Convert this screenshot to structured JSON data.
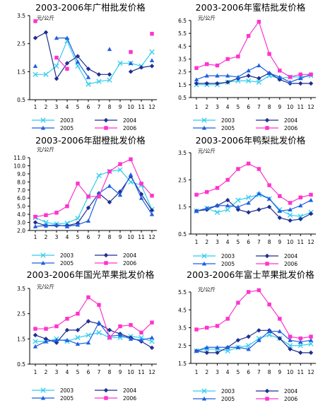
{
  "chart_data": [
    {
      "type": "line",
      "title": "2003-2006年广柑批发价格",
      "ylabel": "元/公斤",
      "ylim": [
        0.5,
        3.5
      ],
      "yticks": [
        "0.5",
        "1.5",
        "2.5",
        "3.5"
      ],
      "categories": [
        "1",
        "2",
        "3",
        "4",
        "5",
        "6",
        "7",
        "8",
        "9",
        "10",
        "11",
        "12"
      ],
      "series": [
        {
          "name": "2003",
          "color": "#33ccee",
          "marker": "x",
          "values": [
            1.4,
            1.4,
            1.7,
            2.6,
            1.7,
            1.05,
            1.15,
            1.2,
            1.8,
            1.8,
            1.7,
            2.2
          ]
        },
        {
          "name": "2004",
          "color": "#1f2f8f",
          "marker": "diamond",
          "values": [
            2.7,
            2.9,
            1.25,
            1.8,
            2.05,
            1.6,
            1.4,
            1.4,
            null,
            1.5,
            1.65,
            1.7
          ]
        },
        {
          "name": "2005",
          "color": "#1f5fe0",
          "marker": "triangle",
          "values": [
            1.7,
            null,
            2.7,
            2.7,
            1.85,
            1.3,
            null,
            2.3,
            null,
            1.8,
            null,
            1.9
          ]
        },
        {
          "name": "2006",
          "color": "#ff33cc",
          "marker": "square",
          "values": [
            3.3,
            null,
            2.0,
            1.6,
            null,
            null,
            null,
            null,
            null,
            2.2,
            null,
            2.85
          ]
        }
      ]
    },
    {
      "type": "line",
      "title": "2003-2006年蜜桔批发价格",
      "ylabel": "元/公斤",
      "ylim": [
        0.5,
        6.5
      ],
      "yticks": [
        "0.5",
        "1.5",
        "2.5",
        "3.5",
        "4.5",
        "5.5",
        "6.5"
      ],
      "categories": [
        "1",
        "2",
        "3",
        "4",
        "5",
        "6",
        "7",
        "8",
        "9",
        "10",
        "11",
        "12"
      ],
      "series": [
        {
          "name": "2003",
          "color": "#33ccee",
          "marker": "x",
          "values": [
            1.5,
            1.5,
            1.5,
            1.7,
            1.8,
            1.8,
            1.7,
            2.2,
            2.0,
            2.1,
            2.1,
            2.2
          ]
        },
        {
          "name": "2004",
          "color": "#1f2f8f",
          "marker": "diamond",
          "values": [
            1.6,
            1.6,
            1.6,
            1.7,
            2.0,
            2.2,
            2.0,
            2.4,
            1.9,
            1.6,
            1.6,
            1.6
          ]
        },
        {
          "name": "2005",
          "color": "#1f5fe0",
          "marker": "triangle",
          "values": [
            1.9,
            2.2,
            2.2,
            2.2,
            2.1,
            2.6,
            3.0,
            2.4,
            2.1,
            1.7,
            2.0,
            2.3
          ]
        },
        {
          "name": "2006",
          "color": "#ff33cc",
          "marker": "square",
          "values": [
            2.8,
            3.1,
            3.0,
            3.5,
            3.7,
            5.3,
            6.4,
            3.9,
            2.6,
            2.1,
            2.3,
            2.3
          ]
        }
      ]
    },
    {
      "type": "line",
      "title": "2003-2006年甜橙批发价格",
      "ylabel": "元/公斤",
      "ylim": [
        2.0,
        11.0
      ],
      "yticks": [
        "2.0",
        "3.0",
        "4.0",
        "5.0",
        "6.0",
        "7.0",
        "8.0",
        "9.0",
        "10.0",
        "11.0"
      ],
      "categories": [
        "1",
        "2",
        "3",
        "4",
        "5",
        "6",
        "7",
        "8",
        "9",
        "10",
        "11",
        "12"
      ],
      "series": [
        {
          "name": "2003",
          "color": "#33ccee",
          "marker": "x",
          "values": [
            3.6,
            3.0,
            2.8,
            2.9,
            3.5,
            6.2,
            8.8,
            9.3,
            9.5,
            8.0,
            7.6,
            4.6
          ]
        },
        {
          "name": "2004",
          "color": "#1f2f8f",
          "marker": "diamond",
          "values": [
            3.0,
            2.6,
            2.6,
            2.6,
            2.9,
            4.8,
            6.6,
            5.5,
            6.8,
            8.7,
            6.5,
            4.5
          ]
        },
        {
          "name": "2005",
          "color": "#1f5fe0",
          "marker": "triangle",
          "values": [
            2.5,
            2.6,
            2.7,
            2.5,
            2.7,
            3.2,
            6.6,
            7.5,
            6.4,
            8.9,
            6.0,
            4.0
          ]
        },
        {
          "name": "2006",
          "color": "#ff33cc",
          "marker": "square",
          "values": [
            3.7,
            3.9,
            4.2,
            5.0,
            7.8,
            6.2,
            6.2,
            9.3,
            10.2,
            10.8,
            7.8,
            6.3
          ]
        }
      ]
    },
    {
      "type": "line",
      "title": "2003-2006年鸭梨批发价格",
      "ylabel": "元/公斤",
      "ylim": [
        0.5,
        3.5
      ],
      "yticks": [
        "0.5",
        "1.5",
        "2.5",
        "3.5"
      ],
      "categories": [
        "1",
        "2",
        "3",
        "4",
        "5",
        "6",
        "7",
        "8",
        "9",
        "10",
        "11",
        "12"
      ],
      "series": [
        {
          "name": "2003",
          "color": "#33ccee",
          "marker": "x",
          "values": [
            1.35,
            1.45,
            1.3,
            1.4,
            1.75,
            1.85,
            1.95,
            1.8,
            1.4,
            1.2,
            1.15,
            1.3
          ]
        },
        {
          "name": "2004",
          "color": "#1f2f8f",
          "marker": "diamond",
          "values": [
            1.35,
            1.4,
            1.55,
            1.75,
            1.4,
            1.3,
            1.4,
            1.5,
            1.1,
            1.0,
            1.05,
            1.25
          ]
        },
        {
          "name": "2005",
          "color": "#1f5fe0",
          "marker": "triangle",
          "values": [
            1.35,
            1.45,
            1.55,
            1.55,
            1.5,
            1.65,
            2.0,
            1.8,
            1.35,
            1.4,
            1.55,
            1.75
          ]
        },
        {
          "name": "2006",
          "color": "#ff33cc",
          "marker": "square",
          "values": [
            1.95,
            2.05,
            2.2,
            2.5,
            2.9,
            3.1,
            2.9,
            2.3,
            1.9,
            1.65,
            1.85,
            1.95
          ]
        }
      ]
    },
    {
      "type": "line",
      "title": "2003-2006年国光苹果批发价格",
      "ylabel": "元/公斤",
      "ylim": [
        0.5,
        3.5
      ],
      "yticks": [
        "0.5",
        "1.5",
        "2.5",
        "3.5"
      ],
      "categories": [
        "1",
        "2",
        "3",
        "4",
        "5",
        "6",
        "7",
        "8",
        "9",
        "10",
        "11",
        "12"
      ],
      "series": [
        {
          "name": "2003",
          "color": "#33ccee",
          "marker": "x",
          "values": [
            1.4,
            1.4,
            1.5,
            1.4,
            1.55,
            1.65,
            1.75,
            1.55,
            1.55,
            1.6,
            1.55,
            1.4
          ]
        },
        {
          "name": "2004",
          "color": "#1f2f8f",
          "marker": "diamond",
          "values": [
            1.65,
            1.5,
            1.35,
            1.85,
            1.85,
            2.2,
            2.1,
            1.85,
            1.7,
            1.55,
            1.4,
            1.15
          ]
        },
        {
          "name": "2005",
          "color": "#1f5fe0",
          "marker": "triangle",
          "values": [
            1.2,
            1.4,
            1.45,
            1.45,
            1.3,
            1.35,
            2.15,
            1.6,
            1.65,
            1.5,
            1.45,
            1.55
          ]
        },
        {
          "name": "2006",
          "color": "#ff33cc",
          "marker": "square",
          "values": [
            1.9,
            1.9,
            2.0,
            2.3,
            2.5,
            3.15,
            2.85,
            1.55,
            2.0,
            2.05,
            1.75,
            2.15
          ]
        }
      ]
    },
    {
      "type": "line",
      "title": "2003-2006年富士苹果批发价格",
      "ylabel": "元/公斤",
      "ylim": [
        1.5,
        5.5
      ],
      "yticks": [
        "1.5",
        "2.5",
        "3.5",
        "4.5",
        "5.5"
      ],
      "categories": [
        "1",
        "2",
        "3",
        "4",
        "5",
        "6",
        "7",
        "8",
        "9",
        "10",
        "11",
        "12"
      ],
      "series": [
        {
          "name": "2003",
          "color": "#33ccee",
          "marker": "x",
          "values": [
            2.2,
            2.3,
            2.3,
            2.2,
            2.4,
            2.5,
            2.9,
            3.1,
            2.9,
            2.5,
            2.5,
            2.6
          ]
        },
        {
          "name": "2004",
          "color": "#1f2f8f",
          "marker": "diamond",
          "values": [
            2.2,
            2.1,
            2.1,
            2.4,
            2.8,
            3.0,
            3.35,
            3.35,
            2.9,
            2.3,
            2.1,
            2.1
          ]
        },
        {
          "name": "2005",
          "color": "#1f5fe0",
          "marker": "triangle",
          "values": [
            2.2,
            2.4,
            2.4,
            2.4,
            2.4,
            2.3,
            2.8,
            3.3,
            3.3,
            2.8,
            2.7,
            2.8
          ]
        },
        {
          "name": "2006",
          "color": "#ff33cc",
          "marker": "square",
          "values": [
            3.4,
            3.5,
            3.6,
            4.0,
            4.9,
            5.5,
            5.6,
            4.8,
            4.0,
            3.0,
            2.9,
            3.0
          ]
        }
      ]
    }
  ]
}
